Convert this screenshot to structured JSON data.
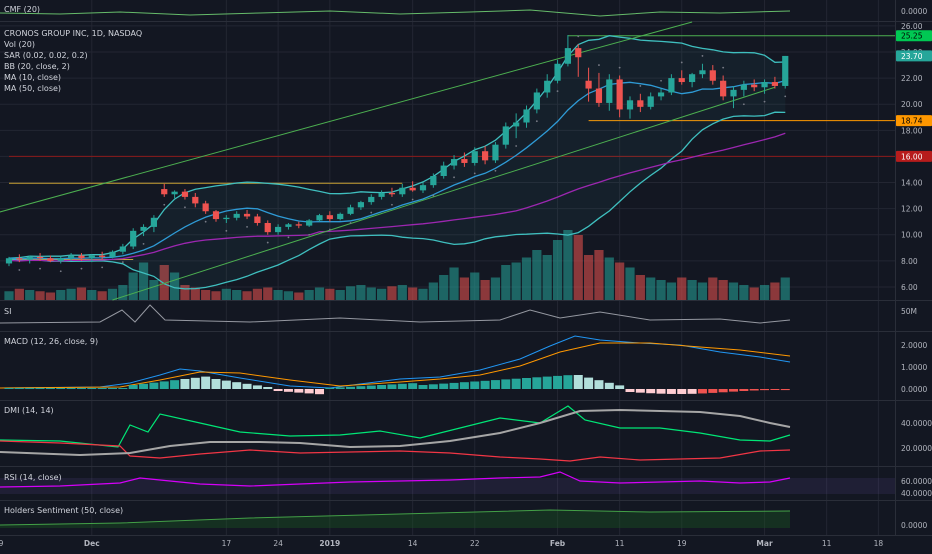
{
  "chart_data": {
    "type": "candlestick",
    "symbol_line": "CRONOS GROUP INC, 1D, NASDAQ",
    "colors": {
      "background": "#131722",
      "up": "#26a69a",
      "down": "#ef5350",
      "grid": "#232632",
      "axis_text": "#b2b5be",
      "bb": "#3fbfbf",
      "ma10": "#2f9bd6",
      "ma50": "#9c27b0",
      "trend": "#4caf50",
      "sar": "#787b86"
    },
    "price_axis": {
      "range": [
        5,
        26.3
      ],
      "ticks": [
        "26.00",
        "24.00",
        "22.00",
        "20.00",
        "18.00",
        "16.00",
        "14.00",
        "12.00",
        "10.00",
        "8.00",
        "6.00"
      ],
      "tick_values": [
        26,
        24,
        22,
        20,
        18,
        16,
        14,
        12,
        10,
        8,
        6
      ]
    },
    "price_badges": [
      {
        "label": "25.25",
        "value": 25.25,
        "color": "#00c853",
        "text_color": "#000000"
      },
      {
        "label": "23.70",
        "value": 23.7,
        "color": "#26a69a",
        "text_color": "#ffffff"
      },
      {
        "label": "18.74",
        "value": 18.74,
        "color": "#ff9800",
        "text_color": "#000000"
      },
      {
        "label": "16.00",
        "value": 16.0,
        "color": "#b71c1c",
        "text_color": "#ffffff"
      }
    ],
    "x_axis": {
      "labels": [
        "19",
        "Dec",
        "17",
        "24",
        "2019",
        "14",
        "22",
        "Feb",
        "11",
        "19",
        "Mar",
        "11",
        "18"
      ],
      "positions": [
        -1,
        8,
        21,
        26,
        31,
        39,
        45,
        53,
        59,
        65,
        73,
        79,
        84
      ]
    },
    "horizontal_lines": [
      {
        "value": 25.25,
        "from": 54,
        "color": "#4caf50"
      },
      {
        "value": 18.74,
        "from": 56,
        "color": "#ff9800"
      },
      {
        "value": 16.0,
        "from": 0,
        "color": "#8b1a1a"
      },
      {
        "value": 13.95,
        "from": 0,
        "to": 38,
        "color": "#c8a032"
      },
      {
        "value": 8.1,
        "from": 0,
        "to": 12,
        "color": "#c8a032"
      }
    ],
    "trend_lines": [
      {
        "x1": -2,
        "y1": 11.5,
        "x2": 66,
        "y2": 26.3
      },
      {
        "x1": 10,
        "y1": 5.0,
        "x2": 74,
        "y2": 21.3
      }
    ],
    "ohlc": [
      [
        7.8,
        8.3,
        7.6,
        8.2
      ],
      [
        8.2,
        8.5,
        7.9,
        8.1
      ],
      [
        8.1,
        8.4,
        7.8,
        8.3
      ],
      [
        8.3,
        8.6,
        8.0,
        8.2
      ],
      [
        8.2,
        8.4,
        7.9,
        8.0
      ],
      [
        8.0,
        8.3,
        7.8,
        8.2
      ],
      [
        8.2,
        8.6,
        8.0,
        8.4
      ],
      [
        8.4,
        8.6,
        8.0,
        8.2
      ],
      [
        8.2,
        8.5,
        7.9,
        8.4
      ],
      [
        8.4,
        8.7,
        8.1,
        8.3
      ],
      [
        8.3,
        8.8,
        8.2,
        8.7
      ],
      [
        8.7,
        9.3,
        8.5,
        9.1
      ],
      [
        9.1,
        10.5,
        8.9,
        10.3
      ],
      [
        10.3,
        10.8,
        9.9,
        10.6
      ],
      [
        10.6,
        11.5,
        10.2,
        11.3
      ],
      [
        13.5,
        13.9,
        12.9,
        13.1
      ],
      [
        13.1,
        13.4,
        12.8,
        13.3
      ],
      [
        13.3,
        13.5,
        12.7,
        12.9
      ],
      [
        12.9,
        13.2,
        12.1,
        12.4
      ],
      [
        12.4,
        12.6,
        11.6,
        11.8
      ],
      [
        11.8,
        11.9,
        11.0,
        11.2
      ],
      [
        11.2,
        11.5,
        10.9,
        11.3
      ],
      [
        11.3,
        11.8,
        11.1,
        11.6
      ],
      [
        11.6,
        11.9,
        11.2,
        11.4
      ],
      [
        11.4,
        11.6,
        10.7,
        10.9
      ],
      [
        10.9,
        11.1,
        10.0,
        10.2
      ],
      [
        10.2,
        10.8,
        10.0,
        10.6
      ],
      [
        10.6,
        10.9,
        10.4,
        10.8
      ],
      [
        10.8,
        11.0,
        10.5,
        10.7
      ],
      [
        10.7,
        11.2,
        10.6,
        11.1
      ],
      [
        11.1,
        11.6,
        11.0,
        11.5
      ],
      [
        11.5,
        11.8,
        11.0,
        11.2
      ],
      [
        11.2,
        11.7,
        11.1,
        11.6
      ],
      [
        11.6,
        12.3,
        11.5,
        12.1
      ],
      [
        12.1,
        12.6,
        11.9,
        12.5
      ],
      [
        12.5,
        13.1,
        12.3,
        12.9
      ],
      [
        12.9,
        13.4,
        12.7,
        13.2
      ],
      [
        13.2,
        13.6,
        12.9,
        13.1
      ],
      [
        13.1,
        13.9,
        12.9,
        13.6
      ],
      [
        13.6,
        14.1,
        13.3,
        13.4
      ],
      [
        13.4,
        14.0,
        13.2,
        13.8
      ],
      [
        13.8,
        14.7,
        13.6,
        14.5
      ],
      [
        14.5,
        15.6,
        14.3,
        15.3
      ],
      [
        15.3,
        16.1,
        15.0,
        15.8
      ],
      [
        15.8,
        16.3,
        15.2,
        15.5
      ],
      [
        15.5,
        16.7,
        15.3,
        16.4
      ],
      [
        16.4,
        16.8,
        15.4,
        15.7
      ],
      [
        15.7,
        17.1,
        15.5,
        16.9
      ],
      [
        16.9,
        18.6,
        16.6,
        18.3
      ],
      [
        18.3,
        19.3,
        17.4,
        18.6
      ],
      [
        18.6,
        19.9,
        18.2,
        19.6
      ],
      [
        19.6,
        21.2,
        19.3,
        20.9
      ],
      [
        20.9,
        22.3,
        20.5,
        21.8
      ],
      [
        21.8,
        23.4,
        21.6,
        23.1
      ],
      [
        23.1,
        25.3,
        22.9,
        24.3
      ],
      [
        24.3,
        24.6,
        22.1,
        23.6
      ],
      [
        21.8,
        22.8,
        20.2,
        21.2
      ],
      [
        21.2,
        22.4,
        19.8,
        20.1
      ],
      [
        20.1,
        22.3,
        19.5,
        21.9
      ],
      [
        21.9,
        22.2,
        19.0,
        19.6
      ],
      [
        19.6,
        20.6,
        18.9,
        20.3
      ],
      [
        20.3,
        20.8,
        19.4,
        19.8
      ],
      [
        19.8,
        20.9,
        19.6,
        20.6
      ],
      [
        20.6,
        21.2,
        20.3,
        20.9
      ],
      [
        20.9,
        22.3,
        20.7,
        22.0
      ],
      [
        22.0,
        22.6,
        21.5,
        21.7
      ],
      [
        21.7,
        22.4,
        21.3,
        22.3
      ],
      [
        22.3,
        23.1,
        22.0,
        22.6
      ],
      [
        22.6,
        23.0,
        21.5,
        21.8
      ],
      [
        21.8,
        22.2,
        20.3,
        20.6
      ],
      [
        20.6,
        21.4,
        19.7,
        21.1
      ],
      [
        21.1,
        21.8,
        20.6,
        21.5
      ],
      [
        21.5,
        21.9,
        21.0,
        21.3
      ],
      [
        21.3,
        21.9,
        20.8,
        21.7
      ],
      [
        21.7,
        22.1,
        21.2,
        21.4
      ],
      [
        21.4,
        23.7,
        21.2,
        23.7
      ]
    ],
    "volume": [
      7,
      9,
      8,
      7,
      6,
      8,
      9,
      10,
      8,
      7,
      9,
      12,
      22,
      30,
      16,
      28,
      22,
      12,
      10,
      8,
      7,
      9,
      8,
      7,
      9,
      10,
      8,
      7,
      6,
      8,
      10,
      9,
      8,
      11,
      12,
      10,
      9,
      11,
      12,
      10,
      9,
      14,
      20,
      26,
      18,
      22,
      16,
      18,
      28,
      30,
      34,
      40,
      36,
      48,
      56,
      52,
      36,
      40,
      34,
      30,
      26,
      20,
      18,
      16,
      14,
      18,
      16,
      14,
      18,
      16,
      14,
      12,
      10,
      12,
      14,
      18
    ],
    "volume_axis_label": "50M",
    "indicator_labels": [
      "CMF (20)",
      "Vol (20)",
      "SAR (0.02, 0.02, 0.2)",
      "BB (20, close, 2)",
      "MA (10, close)",
      "MA (50, close)"
    ],
    "panes": {
      "cmf": {
        "label": "CMF (20)",
        "ticks": [
          "0.0000"
        ]
      },
      "si": {
        "label": "SI",
        "ticks": []
      },
      "macd": {
        "label": "MACD (12, 26, close, 9)",
        "ticks": [
          "2.0000",
          "1.0000",
          "0.0000"
        ],
        "range": [
          -0.3,
          2.8
        ]
      },
      "dmi": {
        "label": "DMI (14, 14)",
        "ticks": [
          "40.0000",
          "20.0000"
        ],
        "range": [
          5,
          60
        ]
      },
      "rsi": {
        "label": "RSI (14, close)",
        "ticks": [
          "60.0000",
          "40.0000"
        ],
        "range": [
          30,
          75
        ]
      },
      "holders": {
        "label": "Holders Sentiment (50, close)",
        "ticks": [
          "0.0000"
        ]
      }
    }
  }
}
